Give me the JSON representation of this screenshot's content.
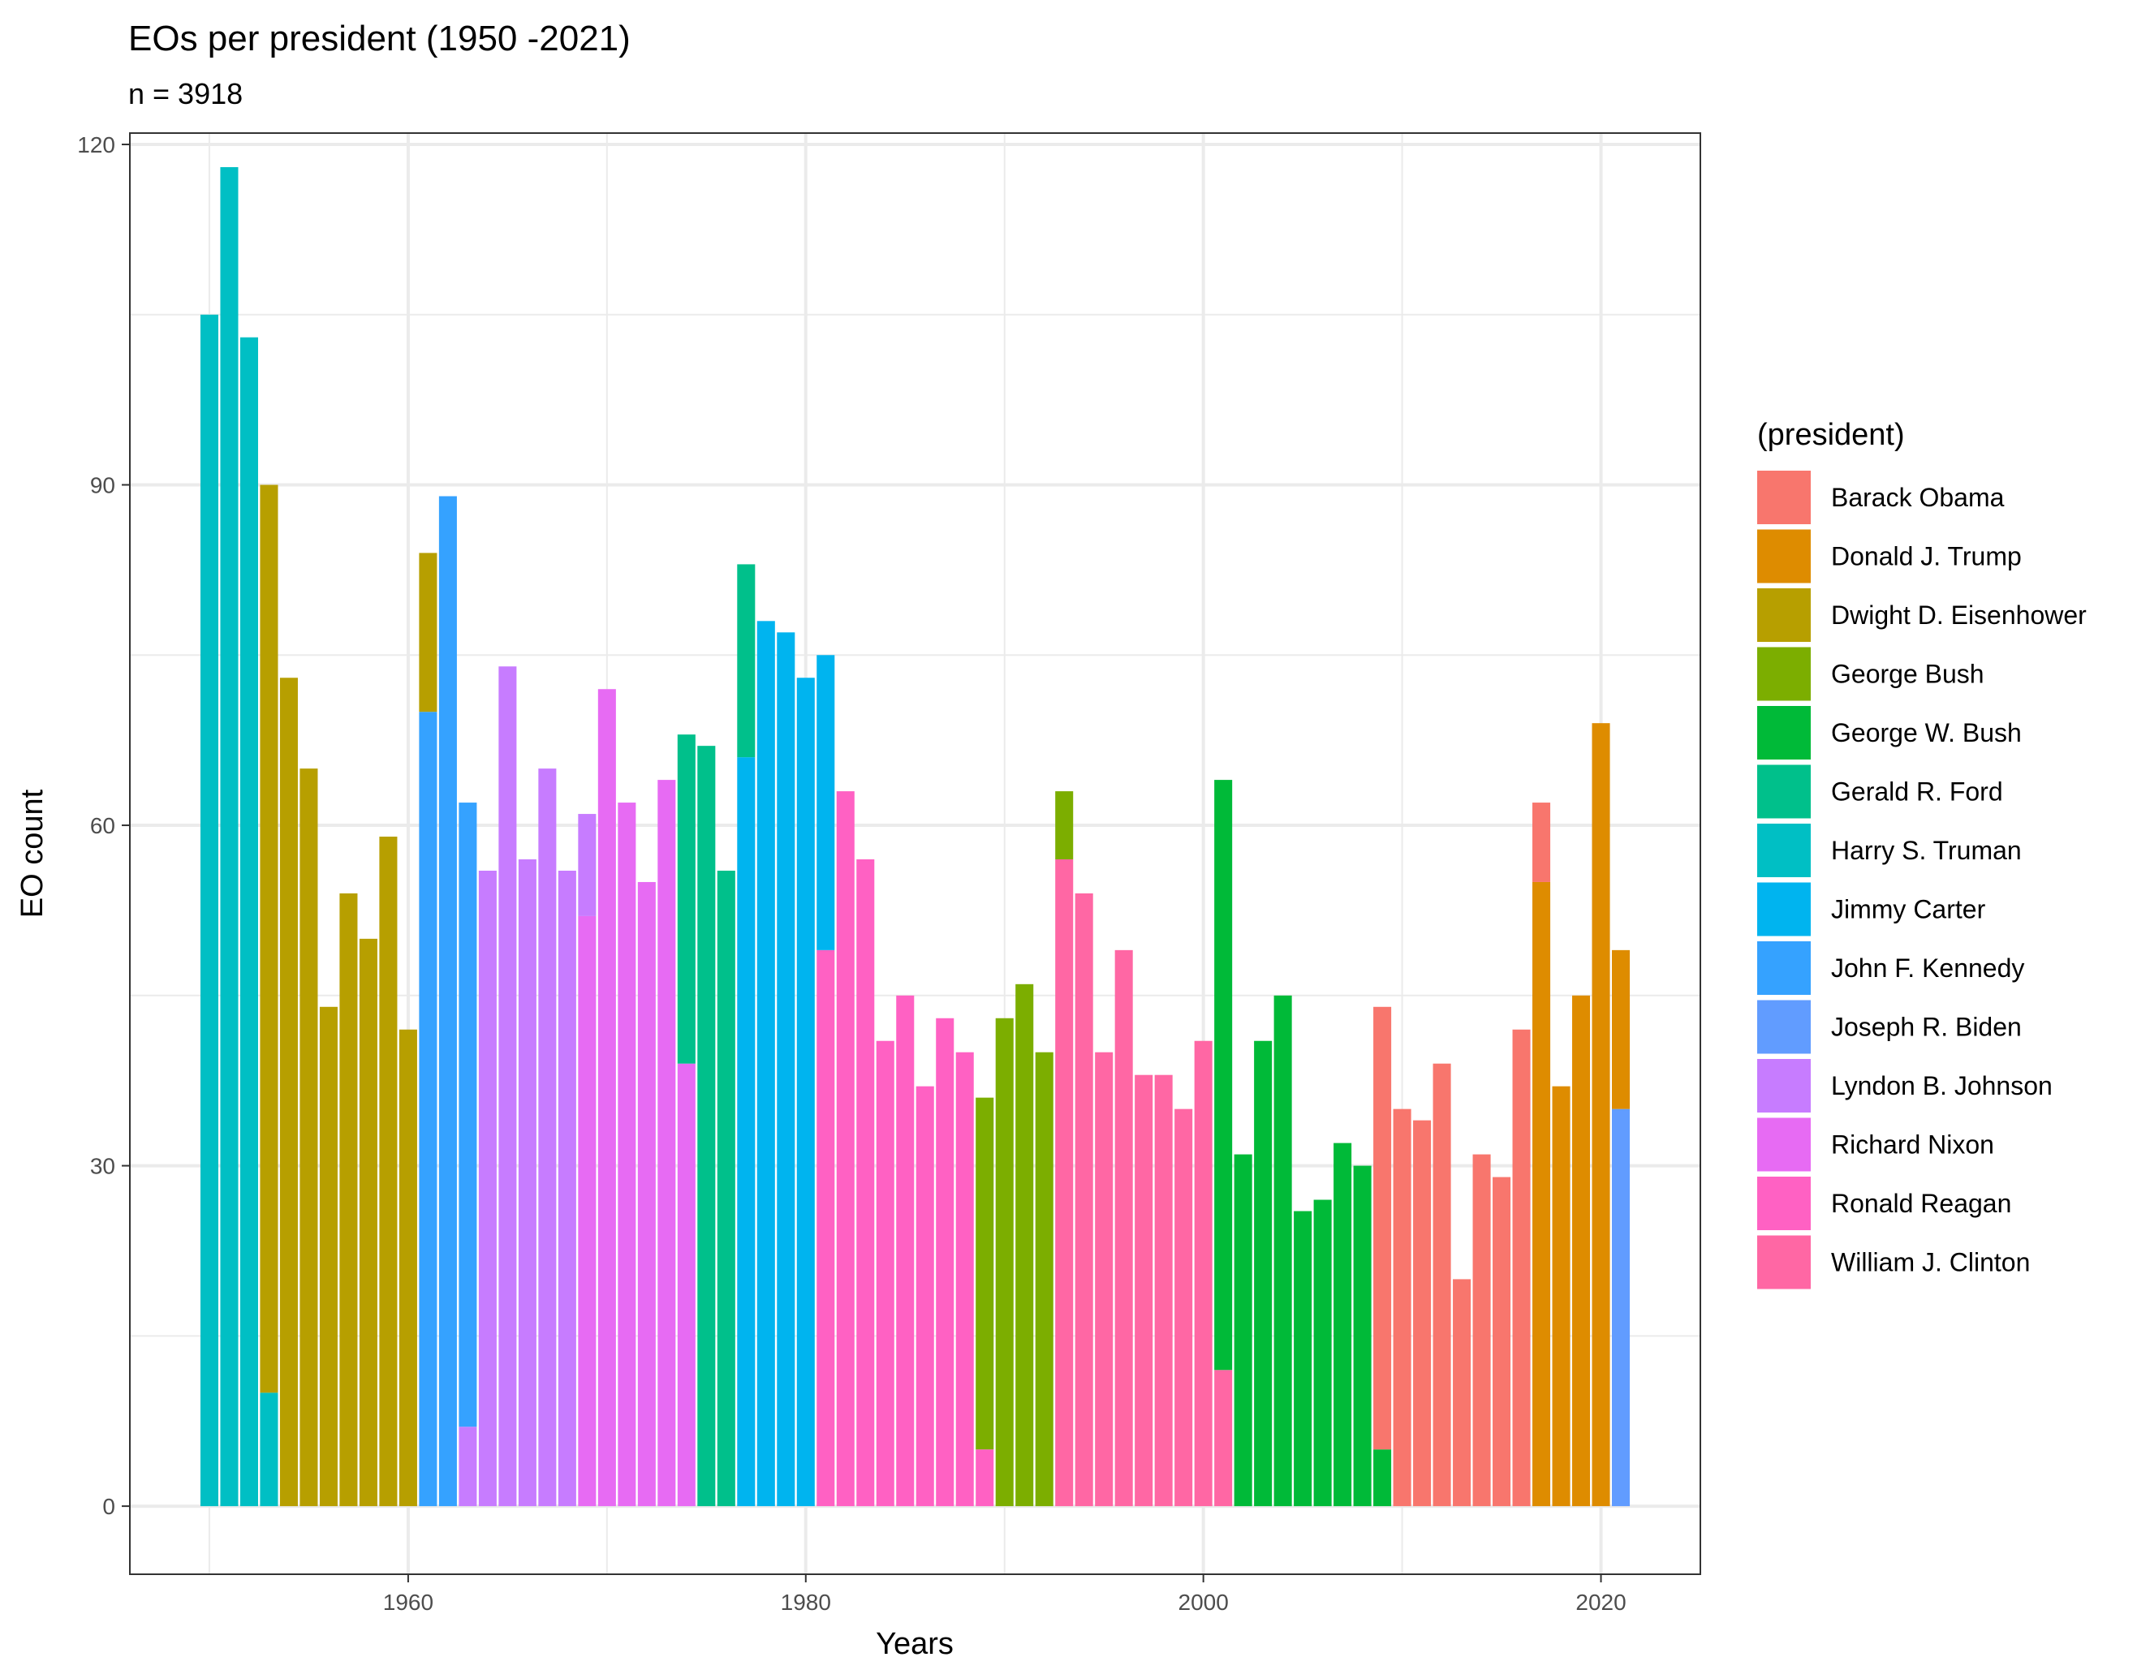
{
  "chart_data": {
    "type": "bar",
    "stacked": true,
    "title": "EOs per president (1950 -2021)",
    "subtitle": "n = 3918",
    "xlabel": "Years",
    "ylabel": "EO count",
    "xlim": [
      1946,
      2025
    ],
    "ylim": [
      -6,
      121
    ],
    "x_ticks": [
      1960,
      1980,
      2000,
      2020
    ],
    "y_ticks": [
      0,
      30,
      60,
      90,
      120
    ],
    "grid": true,
    "legend": {
      "title": "(president)",
      "position": "right"
    },
    "series": [
      {
        "name": "Barack Obama",
        "color": "#F8766D",
        "points": [
          [
            2009,
            39
          ],
          [
            2010,
            35
          ],
          [
            2011,
            34
          ],
          [
            2012,
            39
          ],
          [
            2013,
            20
          ],
          [
            2014,
            31
          ],
          [
            2015,
            29
          ],
          [
            2016,
            42
          ],
          [
            2017,
            7
          ]
        ]
      },
      {
        "name": "Donald J. Trump",
        "color": "#DE8C00",
        "points": [
          [
            2017,
            55
          ],
          [
            2018,
            37
          ],
          [
            2019,
            45
          ],
          [
            2020,
            69
          ],
          [
            2021,
            14
          ]
        ]
      },
      {
        "name": "Dwight D. Eisenhower",
        "color": "#B79F00",
        "points": [
          [
            1953,
            80
          ],
          [
            1954,
            73
          ],
          [
            1955,
            65
          ],
          [
            1956,
            44
          ],
          [
            1957,
            54
          ],
          [
            1958,
            50
          ],
          [
            1959,
            59
          ],
          [
            1960,
            42
          ],
          [
            1961,
            14
          ]
        ]
      },
      {
        "name": "George Bush",
        "color": "#7CAE00",
        "points": [
          [
            1989,
            31
          ],
          [
            1990,
            43
          ],
          [
            1991,
            46
          ],
          [
            1992,
            40
          ],
          [
            1993,
            6
          ]
        ]
      },
      {
        "name": "George W. Bush",
        "color": "#00BA38",
        "points": [
          [
            2001,
            52
          ],
          [
            2002,
            31
          ],
          [
            2003,
            41
          ],
          [
            2004,
            45
          ],
          [
            2005,
            26
          ],
          [
            2006,
            27
          ],
          [
            2007,
            32
          ],
          [
            2008,
            30
          ],
          [
            2009,
            5
          ]
        ]
      },
      {
        "name": "Gerald R. Ford",
        "color": "#00C08B",
        "points": [
          [
            1974,
            29
          ],
          [
            1975,
            67
          ],
          [
            1976,
            56
          ],
          [
            1977,
            17
          ]
        ]
      },
      {
        "name": "Harry S. Truman",
        "color": "#00BFC4",
        "points": [
          [
            1950,
            105
          ],
          [
            1951,
            118
          ],
          [
            1952,
            103
          ],
          [
            1953,
            10
          ]
        ]
      },
      {
        "name": "Jimmy Carter",
        "color": "#00B4EF",
        "points": [
          [
            1977,
            66
          ],
          [
            1978,
            78
          ],
          [
            1979,
            77
          ],
          [
            1980,
            73
          ],
          [
            1981,
            26
          ]
        ]
      },
      {
        "name": "John F. Kennedy",
        "color": "#35A2FF",
        "points": [
          [
            1961,
            70
          ],
          [
            1962,
            89
          ],
          [
            1963,
            55
          ]
        ]
      },
      {
        "name": "Joseph R. Biden",
        "color": "#619CFF",
        "points": [
          [
            2021,
            35
          ]
        ]
      },
      {
        "name": "Lyndon B. Johnson",
        "color": "#C77CFF",
        "points": [
          [
            1963,
            7
          ],
          [
            1964,
            56
          ],
          [
            1965,
            74
          ],
          [
            1966,
            57
          ],
          [
            1967,
            65
          ],
          [
            1968,
            56
          ],
          [
            1969,
            9
          ]
        ]
      },
      {
        "name": "Richard Nixon",
        "color": "#E76BF3",
        "points": [
          [
            1969,
            52
          ],
          [
            1970,
            72
          ],
          [
            1971,
            62
          ],
          [
            1972,
            55
          ],
          [
            1973,
            64
          ],
          [
            1974,
            39
          ]
        ]
      },
      {
        "name": "Ronald Reagan",
        "color": "#FF61C3",
        "points": [
          [
            1981,
            49
          ],
          [
            1982,
            63
          ],
          [
            1983,
            57
          ],
          [
            1984,
            41
          ],
          [
            1985,
            45
          ],
          [
            1986,
            37
          ],
          [
            1987,
            43
          ],
          [
            1988,
            40
          ],
          [
            1989,
            5
          ]
        ]
      },
      {
        "name": "William J. Clinton",
        "color": "#FF67A4",
        "points": [
          [
            1993,
            57
          ],
          [
            1994,
            54
          ],
          [
            1995,
            40
          ],
          [
            1996,
            49
          ],
          [
            1997,
            38
          ],
          [
            1998,
            38
          ],
          [
            1999,
            35
          ],
          [
            2000,
            41
          ],
          [
            2001,
            12
          ]
        ]
      }
    ]
  }
}
